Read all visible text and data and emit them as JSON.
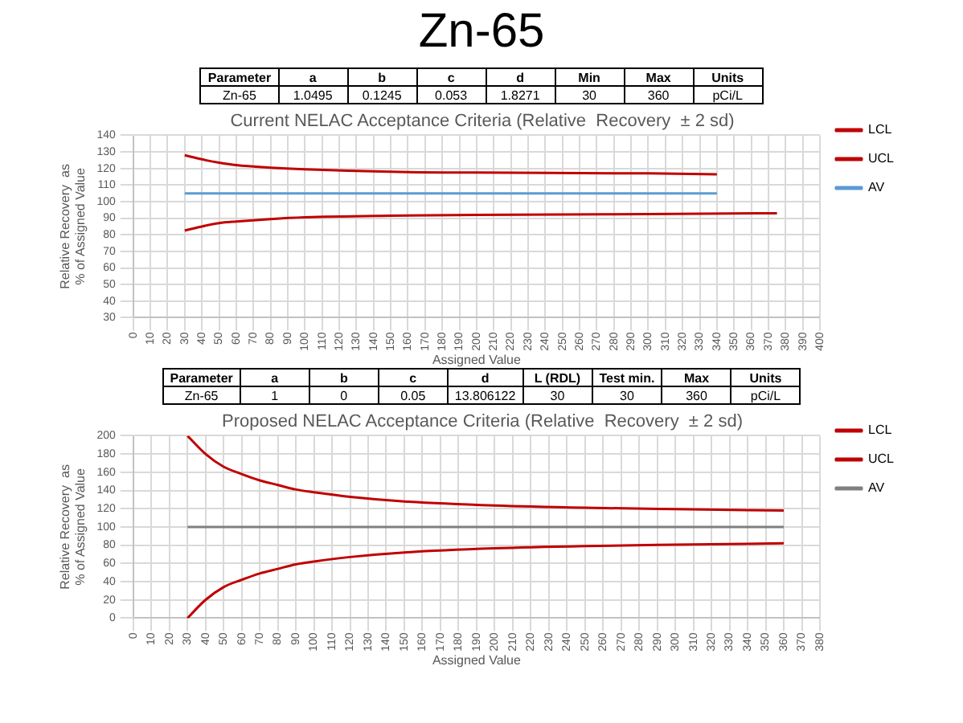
{
  "chart_data": [
    {
      "type": "other",
      "title": "Zn-65"
    },
    {
      "type": "line",
      "title": "Current NELAC Acceptance Criteria (Relative  Recovery  ± 2 sd)",
      "xlabel": "Assigned Value",
      "ylabel": "Relative Recovery  as\n% of Assigned Value",
      "annotations": [
        "Parameter",
        "a",
        "b",
        "c",
        "d",
        "Min",
        "Max",
        "Units",
        "Zn-65",
        "1.0495",
        "0.1245",
        "0.053",
        "1.8271",
        "30",
        "360",
        "pCi/L"
      ],
      "series": [
        {
          "name": "LCL",
          "color": "#c00000",
          "x": [
            30,
            40,
            50,
            60,
            80,
            100,
            150,
            200,
            300,
            375
          ],
          "values": [
            82.5,
            85,
            87,
            88,
            89.5,
            90.5,
            91.5,
            92,
            92.5,
            93
          ]
        },
        {
          "name": "UCL",
          "color": "#c00000",
          "x": [
            30,
            40,
            50,
            60,
            80,
            100,
            150,
            200,
            300,
            340
          ],
          "values": [
            128,
            125.5,
            123.5,
            122,
            120.5,
            119.5,
            118,
            117.5,
            117,
            116.5
          ]
        },
        {
          "name": "AV",
          "color": "#5b9bd5",
          "x": [
            30,
            340
          ],
          "values": [
            105,
            105
          ]
        }
      ],
      "xlim": [
        0,
        400
      ],
      "xticks": [
        0,
        10,
        20,
        30,
        40,
        50,
        60,
        70,
        80,
        90,
        100,
        110,
        120,
        130,
        140,
        150,
        160,
        170,
        180,
        190,
        200,
        210,
        220,
        230,
        240,
        250,
        260,
        270,
        280,
        290,
        300,
        310,
        320,
        330,
        340,
        350,
        360,
        370,
        380,
        390,
        400
      ],
      "ylim": [
        30,
        140
      ],
      "yticks": [
        30,
        40,
        50,
        60,
        70,
        80,
        90,
        100,
        110,
        120,
        130,
        140
      ],
      "grid": true,
      "legend": "top right"
    },
    {
      "type": "line",
      "title": "Proposed NELAC Acceptance Criteria (Relative  Recovery  ± 2 sd)",
      "xlabel": "Assigned Value",
      "ylabel": "Relative Recovery  as\n% of Assigned Value",
      "annotations": [
        "Parameter",
        "a",
        "b",
        "c",
        "d",
        "L (RDL)",
        "Test min.",
        "Max",
        "Units",
        "Zn-65",
        "1",
        "0",
        "0.05",
        "13.806122",
        "30",
        "30",
        "360",
        "pCi/L"
      ],
      "series": [
        {
          "name": "LCL",
          "color": "#c00000",
          "x": [
            30,
            40,
            50,
            60,
            70,
            80,
            90,
            100,
            120,
            150,
            200,
            250,
            300,
            360
          ],
          "values": [
            200,
            180,
            166,
            158,
            151,
            146,
            141,
            138,
            133,
            128,
            123.5,
            121,
            119.5,
            118
          ]
        },
        {
          "name": "UCL",
          "color": "#c00000",
          "x": [
            30,
            40,
            50,
            60,
            70,
            80,
            90,
            100,
            120,
            150,
            200,
            250,
            300,
            360
          ],
          "values": [
            0,
            20,
            34,
            42,
            49,
            54,
            59,
            62,
            67,
            72,
            76.5,
            79,
            80.5,
            82
          ]
        },
        {
          "name": "AV",
          "color": "#808080",
          "x": [
            30,
            360
          ],
          "values": [
            100,
            100
          ]
        }
      ],
      "xlim": [
        0,
        380
      ],
      "xticks": [
        0,
        10,
        20,
        30,
        40,
        50,
        60,
        70,
        80,
        90,
        100,
        110,
        120,
        130,
        140,
        150,
        160,
        170,
        180,
        190,
        200,
        210,
        220,
        230,
        240,
        250,
        260,
        270,
        280,
        290,
        300,
        310,
        320,
        330,
        340,
        350,
        360,
        370,
        380
      ],
      "ylim": [
        0,
        200
      ],
      "yticks": [
        0,
        20,
        40,
        60,
        80,
        100,
        120,
        140,
        160,
        180,
        200
      ],
      "grid": true,
      "legend": "top right"
    }
  ]
}
